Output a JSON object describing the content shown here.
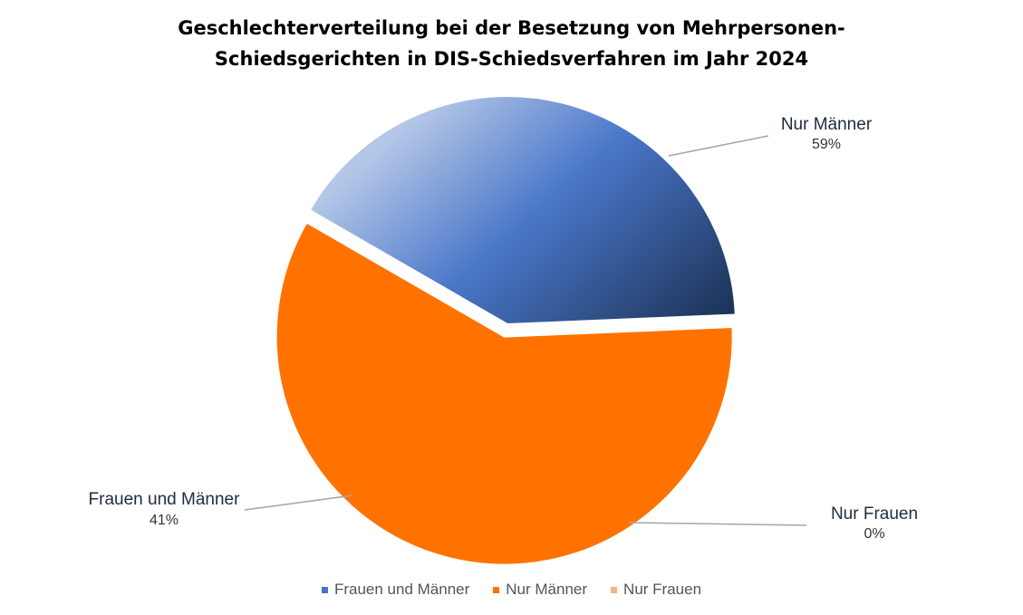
{
  "chart_data": {
    "type": "pie",
    "title_lines": [
      "Geschlechterverteilung bei der Besetzung von Mehrpersonen-",
      "Schiedsgerichten in DIS-Schiedsverfahren im Jahr 2024"
    ],
    "slices": [
      {
        "name": "Frauen und Männer",
        "value": 41,
        "label": "41%",
        "color": "#4472c4"
      },
      {
        "name": "Nur Männer",
        "value": 59,
        "label": "59%",
        "color": "#ff7200"
      },
      {
        "name": "Nur Frauen",
        "value": 0,
        "label": "0%",
        "color": "#f4b183"
      }
    ],
    "legend": {
      "position": "bottom",
      "items": [
        "Frauen und Männer",
        "Nur Männer",
        "Nur Frauen"
      ]
    },
    "exploded": "Nur Männer"
  }
}
